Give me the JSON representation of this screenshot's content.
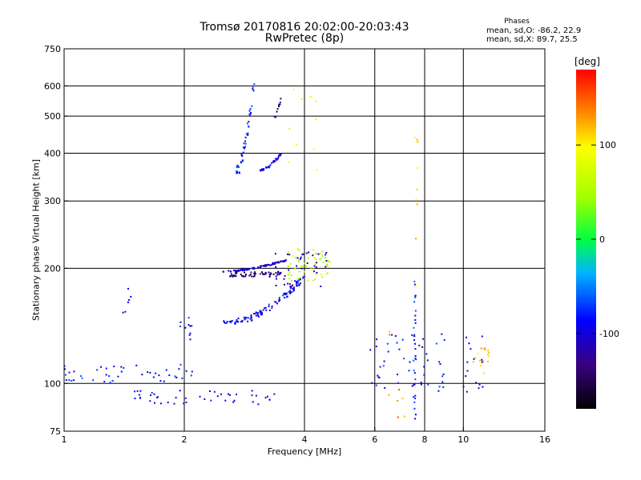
{
  "header": {
    "title_line1": "Tromsø 20170816 20:02:00-20:03:43",
    "title_line2": "RwPretec (8p)",
    "phase_heading": "Phases",
    "phase_stat_o": "mean, sd,O: -86.2, 22.9",
    "phase_stat_x": "mean, sd,X:  89.7, 25.5"
  },
  "colorbar": {
    "title": "[deg]",
    "ticks": [
      {
        "value": 100,
        "label": "100"
      },
      {
        "value": 0,
        "label": "0"
      },
      {
        "value": -100,
        "label": "-100"
      }
    ],
    "range": [
      -180,
      180
    ]
  },
  "chart_data": {
    "type": "scatter",
    "xlabel": "Frequency [MHz]",
    "ylabel": "Stationary phase Virtual Height [km]",
    "x_scale": "log",
    "y_scale": "log",
    "xlim": [
      1,
      16
    ],
    "ylim": [
      75,
      750
    ],
    "grid": true,
    "x_ticks": [
      {
        "value": 1,
        "label": "1"
      },
      {
        "value": 2,
        "label": "2"
      },
      {
        "value": 4,
        "label": "4"
      },
      {
        "value": 6,
        "label": "6"
      },
      {
        "value": 8,
        "label": "8"
      },
      {
        "value": 10,
        "label": "10"
      },
      {
        "value": 16,
        "label": "16"
      }
    ],
    "y_ticks": [
      {
        "value": 75,
        "label": "75"
      },
      {
        "value": 100,
        "label": "100"
      },
      {
        "value": 200,
        "label": "200"
      },
      {
        "value": 300,
        "label": "300"
      },
      {
        "value": 400,
        "label": "400"
      },
      {
        "value": 500,
        "label": "500"
      },
      {
        "value": 600,
        "label": "600"
      },
      {
        "value": 750,
        "label": "750"
      }
    ],
    "point_clusters": [
      {
        "phase": -110,
        "x": [
          2.5,
          3.6
        ],
        "y": [
          196,
          210
        ],
        "n": 90,
        "curve": "rising"
      },
      {
        "phase": -140,
        "x": [
          2.6,
          3.5
        ],
        "y": [
          190,
          200
        ],
        "n": 55,
        "curve": "flat"
      },
      {
        "phase": -95,
        "x": [
          2.7,
          4.0
        ],
        "y": [
          145,
          190
        ],
        "n": 95,
        "curve": "rising"
      },
      {
        "phase": -80,
        "x": [
          2.5,
          2.7
        ],
        "y": [
          143,
          148
        ],
        "n": 12,
        "curve": "flat"
      },
      {
        "phase": 60,
        "x": [
          3.6,
          4.7
        ],
        "y": [
          185,
          225
        ],
        "n": 55,
        "curve": "none"
      },
      {
        "phase": -120,
        "x": [
          3.3,
          4.6
        ],
        "y": [
          178,
          222
        ],
        "n": 45,
        "curve": "none"
      },
      {
        "phase": -85,
        "x": [
          2.7,
          3.0
        ],
        "y": [
          355,
          630
        ],
        "n": 45,
        "curve": "rising"
      },
      {
        "phase": -100,
        "x": [
          3.1,
          3.5
        ],
        "y": [
          360,
          400
        ],
        "n": 35,
        "curve": "rising"
      },
      {
        "phase": -140,
        "x": [
          3.3,
          3.5
        ],
        "y": [
          480,
          560
        ],
        "n": 10,
        "curve": "rising"
      },
      {
        "phase": -85,
        "x": [
          1.0,
          2.1
        ],
        "y": [
          100,
          112
        ],
        "n": 45,
        "curve": "none"
      },
      {
        "phase": -100,
        "x": [
          1.5,
          3.4
        ],
        "y": [
          88,
          96
        ],
        "n": 45,
        "curve": "none"
      },
      {
        "phase": -95,
        "x": [
          1.9,
          2.1
        ],
        "y": [
          130,
          150
        ],
        "n": 10,
        "curve": "none"
      },
      {
        "phase": -110,
        "x": [
          1.4,
          1.5
        ],
        "y": [
          150,
          180
        ],
        "n": 6,
        "curve": "none"
      },
      {
        "phase": -90,
        "x": [
          5.8,
          9.5
        ],
        "y": [
          95,
          135
        ],
        "n": 50,
        "curve": "none"
      },
      {
        "phase": 110,
        "x": [
          10.5,
          11.6
        ],
        "y": [
          105,
          130
        ],
        "n": 18,
        "curve": "none"
      },
      {
        "phase": -110,
        "x": [
          10.0,
          11.2
        ],
        "y": [
          95,
          140
        ],
        "n": 16,
        "curve": "none"
      },
      {
        "phase": -85,
        "x": [
          7.5,
          7.6
        ],
        "y": [
          80,
          205
        ],
        "n": 30,
        "curve": "vertical"
      },
      {
        "phase": 110,
        "x": [
          7.55,
          7.7
        ],
        "y": [
          150,
          450
        ],
        "n": 10,
        "curve": "vertical"
      },
      {
        "phase": 140,
        "x": [
          6.5,
          7.2
        ],
        "y": [
          78,
          140
        ],
        "n": 8,
        "curve": "none"
      },
      {
        "phase": 90,
        "x": [
          3.6,
          4.3
        ],
        "y": [
          360,
          650
        ],
        "n": 10,
        "curve": "none"
      }
    ]
  },
  "colors": {
    "grid": "#000000",
    "frame": "#000000"
  }
}
